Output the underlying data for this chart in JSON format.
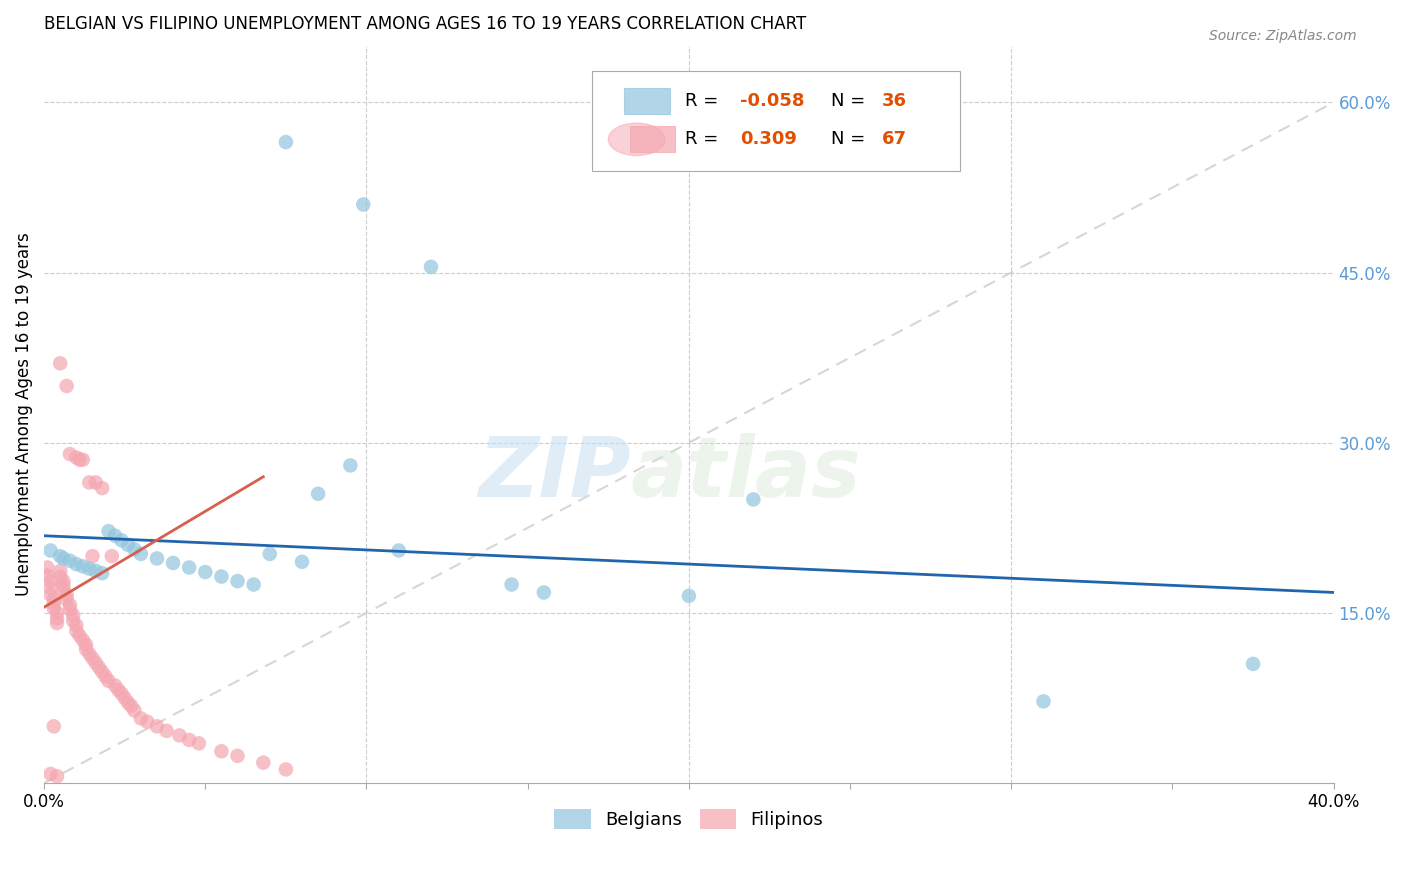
{
  "title": "BELGIAN VS FILIPINO UNEMPLOYMENT AMONG AGES 16 TO 19 YEARS CORRELATION CHART",
  "source": "Source: ZipAtlas.com",
  "ylabel": "Unemployment Among Ages 16 to 19 years",
  "xlim": [
    0.0,
    0.4
  ],
  "ylim": [
    0.0,
    0.65
  ],
  "ytick_vals": [
    0.15,
    0.3,
    0.45,
    0.6
  ],
  "ytick_labels": [
    "15.0%",
    "30.0%",
    "45.0%",
    "60.0%"
  ],
  "xtick_vals": [
    0.0,
    0.05,
    0.1,
    0.15,
    0.2,
    0.25,
    0.3,
    0.35,
    0.4
  ],
  "xtick_labels_show": [
    "0.0%",
    "",
    "",
    "",
    "",
    "",
    "",
    "",
    "40.0%"
  ],
  "belgian_color": "#92c5de",
  "filipino_color": "#f4a6b0",
  "belgian_line_color": "#2166ac",
  "filipino_line_color": "#d6604d",
  "ref_line_color": "#cccccc",
  "belgian_R": -0.058,
  "belgian_N": 36,
  "filipino_R": 0.309,
  "filipino_N": 67,
  "watermark_zip": "ZIP",
  "watermark_atlas": "atlas",
  "belgian_x": [
    0.075,
    0.099,
    0.12,
    0.002,
    0.005,
    0.006,
    0.008,
    0.01,
    0.012,
    0.014,
    0.016,
    0.018,
    0.02,
    0.022,
    0.024,
    0.026,
    0.028,
    0.03,
    0.035,
    0.04,
    0.045,
    0.05,
    0.055,
    0.06,
    0.065,
    0.07,
    0.08,
    0.085,
    0.095,
    0.11,
    0.145,
    0.155,
    0.2,
    0.22,
    0.31,
    0.375
  ],
  "belgian_y": [
    0.565,
    0.51,
    0.455,
    0.205,
    0.2,
    0.198,
    0.196,
    0.193,
    0.191,
    0.189,
    0.187,
    0.185,
    0.222,
    0.218,
    0.214,
    0.21,
    0.206,
    0.202,
    0.198,
    0.194,
    0.19,
    0.186,
    0.182,
    0.178,
    0.175,
    0.202,
    0.195,
    0.255,
    0.28,
    0.205,
    0.175,
    0.168,
    0.165,
    0.25,
    0.072,
    0.105
  ],
  "filipino_x": [
    0.001,
    0.001,
    0.002,
    0.002,
    0.002,
    0.003,
    0.003,
    0.003,
    0.004,
    0.004,
    0.004,
    0.005,
    0.005,
    0.005,
    0.006,
    0.006,
    0.006,
    0.007,
    0.007,
    0.007,
    0.008,
    0.008,
    0.008,
    0.009,
    0.009,
    0.01,
    0.01,
    0.01,
    0.011,
    0.011,
    0.012,
    0.012,
    0.013,
    0.013,
    0.014,
    0.014,
    0.015,
    0.015,
    0.016,
    0.016,
    0.017,
    0.018,
    0.018,
    0.019,
    0.02,
    0.021,
    0.022,
    0.023,
    0.024,
    0.025,
    0.026,
    0.027,
    0.028,
    0.03,
    0.032,
    0.035,
    0.038,
    0.042,
    0.045,
    0.048,
    0.055,
    0.06,
    0.068,
    0.075,
    0.002,
    0.003,
    0.004
  ],
  "filipino_y": [
    0.19,
    0.183,
    0.178,
    0.172,
    0.166,
    0.162,
    0.158,
    0.154,
    0.15,
    0.145,
    0.141,
    0.37,
    0.187,
    0.182,
    0.178,
    0.174,
    0.17,
    0.35,
    0.166,
    0.162,
    0.157,
    0.153,
    0.29,
    0.148,
    0.143,
    0.139,
    0.287,
    0.134,
    0.13,
    0.285,
    0.126,
    0.285,
    0.122,
    0.118,
    0.114,
    0.265,
    0.11,
    0.2,
    0.106,
    0.265,
    0.102,
    0.098,
    0.26,
    0.094,
    0.09,
    0.2,
    0.086,
    0.082,
    0.079,
    0.075,
    0.071,
    0.068,
    0.064,
    0.057,
    0.054,
    0.05,
    0.046,
    0.042,
    0.038,
    0.035,
    0.028,
    0.024,
    0.018,
    0.012,
    0.008,
    0.05,
    0.006
  ],
  "bel_trend_x": [
    0.0,
    0.4
  ],
  "bel_trend_y": [
    0.218,
    0.168
  ],
  "fil_trend_x": [
    0.0,
    0.068
  ],
  "fil_trend_y": [
    0.155,
    0.27
  ],
  "ref_line_x": [
    0.0,
    0.4
  ],
  "ref_line_y": [
    0.0,
    0.6
  ]
}
